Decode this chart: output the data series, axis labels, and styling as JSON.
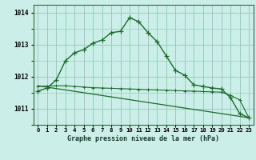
{
  "bg_color": "#cceee8",
  "grid_color": "#99ccbb",
  "line_color": "#1a6b2a",
  "title": "Graphe pression niveau de la mer (hPa)",
  "xlim": [
    -0.5,
    23.5
  ],
  "ylim": [
    1010.5,
    1014.25
  ],
  "yticks": [
    1011,
    1012,
    1013,
    1014
  ],
  "curve1_x": [
    0,
    1,
    2,
    3,
    4,
    5,
    6,
    7,
    8,
    9,
    10,
    11,
    12,
    13,
    14,
    15,
    16,
    17,
    18,
    19,
    20,
    21,
    22,
    23
  ],
  "curve1_y": [
    1011.55,
    1011.65,
    1011.9,
    1012.5,
    1012.75,
    1012.85,
    1013.05,
    1013.15,
    1013.38,
    1013.42,
    1013.85,
    1013.72,
    1013.38,
    1013.1,
    1012.65,
    1012.2,
    1012.05,
    1011.75,
    1011.7,
    1011.65,
    1011.62,
    1011.35,
    1010.85,
    1010.72
  ],
  "curve2_x": [
    0,
    1,
    2,
    3,
    4,
    5,
    6,
    7,
    8,
    9,
    10,
    11,
    12,
    13,
    14,
    15,
    16,
    17,
    18,
    19,
    20,
    21,
    22,
    23
  ],
  "curve2_y": [
    1011.7,
    1011.71,
    1011.72,
    1011.72,
    1011.7,
    1011.68,
    1011.66,
    1011.65,
    1011.64,
    1011.63,
    1011.62,
    1011.61,
    1011.6,
    1011.59,
    1011.58,
    1011.57,
    1011.56,
    1011.55,
    1011.54,
    1011.53,
    1011.52,
    1011.42,
    1011.28,
    1010.72
  ],
  "curve3_x": [
    0,
    23
  ],
  "curve3_y": [
    1011.72,
    1010.72
  ]
}
